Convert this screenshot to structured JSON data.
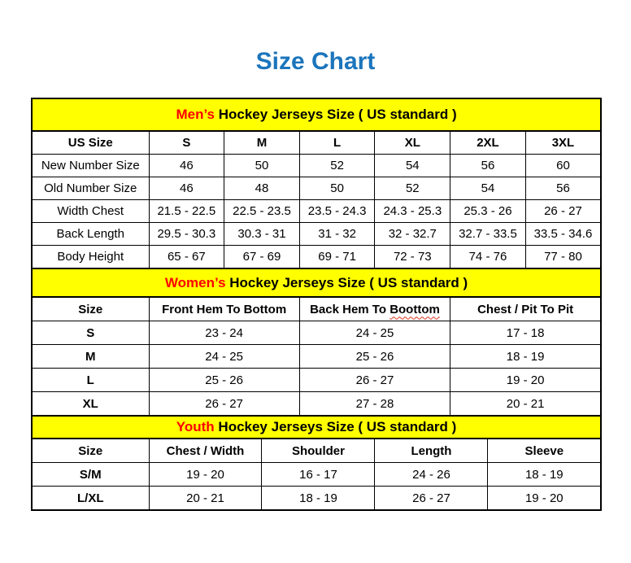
{
  "page": {
    "title": "Size Chart"
  },
  "colors": {
    "title": "#1B75BC",
    "band_background": "#FFFF00",
    "band_highlight": "#FF0000",
    "border": "#000000",
    "text": "#000000",
    "squiggle": "#E0321F"
  },
  "sections": [
    {
      "id": "mens",
      "band": {
        "highlight": "Men’s",
        "rest": " Hockey Jerseys Size ( US standard )"
      },
      "columns": [
        "US Size",
        "S",
        "M",
        "L",
        "XL",
        "2XL",
        "3XL"
      ],
      "rows": [
        [
          "New Number Size",
          "46",
          "50",
          "52",
          "54",
          "56",
          "60"
        ],
        [
          "Old Number Size",
          "46",
          "48",
          "50",
          "52",
          "54",
          "56"
        ],
        [
          "Width Chest",
          "21.5 - 22.5",
          "22.5 - 23.5",
          "23.5 - 24.3",
          "24.3 - 25.3",
          "25.3 - 26",
          "26 - 27"
        ],
        [
          "Back Length",
          "29.5 - 30.3",
          "30.3 - 31",
          "31 - 32",
          "32 - 32.7",
          "32.7 - 33.5",
          "33.5 - 34.6"
        ],
        [
          "Body Height",
          "65 - 67",
          "67 - 69",
          "69 - 71",
          "72 - 73",
          "74 - 76",
          "77 - 80"
        ]
      ],
      "bold_row_labels": false,
      "span": 2
    },
    {
      "id": "womens",
      "band": {
        "highlight": "Women’s",
        "rest": " Hockey Jerseys Size ( US standard )"
      },
      "columns": [
        "Size",
        "Front Hem To Bottom",
        {
          "prefix": "Back Hem To ",
          "squiggle": "Boottom"
        },
        "Chest / Pit To Pit"
      ],
      "rows": [
        [
          "S",
          "23 - 24",
          "24 - 25",
          "17 - 18"
        ],
        [
          "M",
          "24 - 25",
          "25 - 26",
          "18 - 19"
        ],
        [
          "L",
          "25 - 26",
          "26 - 27",
          "19 - 20"
        ],
        [
          "XL",
          "26 - 27",
          "27 - 28",
          "20 - 21"
        ]
      ],
      "bold_row_labels": true,
      "span": 4
    },
    {
      "id": "youth",
      "band": {
        "highlight": "Youth",
        "rest": " Hockey Jerseys Size ( US standard )"
      },
      "columns": [
        "Size",
        "Chest / Width",
        "Shoulder",
        "Length",
        "Sleeve"
      ],
      "rows": [
        [
          "S/M",
          "19 - 20",
          "16 - 17",
          "24 - 26",
          "18 - 19"
        ],
        [
          "L/XL",
          "20 - 21",
          "18 - 19",
          "26 - 27",
          "19 - 20"
        ]
      ],
      "bold_row_labels": true,
      "span": 3
    }
  ]
}
